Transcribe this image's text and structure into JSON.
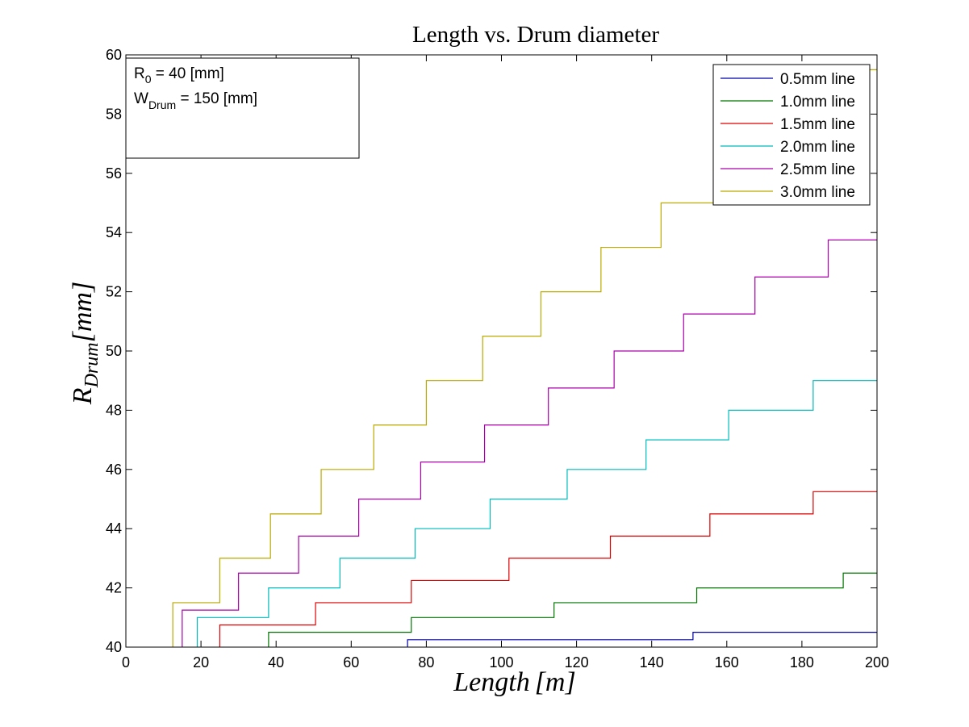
{
  "chart_data": {
    "type": "line",
    "title": "Length vs. Drum diameter",
    "xlabel": {
      "base": "Length",
      "unit": "[m]"
    },
    "ylabel": {
      "base": "R",
      "subscript": "Drum",
      "unit": "[mm]"
    },
    "xlim": [
      0,
      200
    ],
    "ylim": [
      40,
      60
    ],
    "xticks": [
      0,
      20,
      40,
      60,
      80,
      100,
      120,
      140,
      160,
      180,
      200
    ],
    "yticks": [
      40,
      42,
      44,
      46,
      48,
      50,
      52,
      54,
      56,
      58,
      60
    ],
    "grid": false,
    "legend_position": "top-right",
    "annotation": {
      "line1": {
        "base": "R",
        "subscript": "0",
        "rest": " = 40 [mm]"
      },
      "line2": {
        "base": "W",
        "subscript": "Drum",
        "rest": " = 150 [mm]"
      }
    },
    "series": [
      {
        "name": "0.5mm line",
        "color": "#0000aa",
        "steps_x": [
          75,
          151
        ],
        "steps_y": [
          40.25,
          40.5
        ]
      },
      {
        "name": "1.0mm line",
        "color": "#007700",
        "steps_x": [
          38,
          76,
          114,
          152,
          191
        ],
        "steps_y": [
          40.5,
          41.0,
          41.5,
          42.0,
          42.5
        ]
      },
      {
        "name": "1.5mm line",
        "color": "#dd0000",
        "steps_x": [
          25,
          50.5,
          76,
          102,
          129,
          155.5,
          183
        ],
        "steps_y": [
          40.75,
          41.5,
          42.25,
          43.0,
          43.75,
          44.5,
          45.25
        ]
      },
      {
        "name": "2.0mm line",
        "color": "#00bbbb",
        "steps_x": [
          19,
          38,
          57,
          77,
          97,
          117.5,
          138.5,
          160.5,
          183
        ],
        "steps_y": [
          41,
          42,
          43,
          44,
          45,
          46,
          47,
          48,
          49
        ]
      },
      {
        "name": "2.5mm line",
        "color": "#aa00aa",
        "steps_x": [
          15,
          30,
          46,
          62,
          78.5,
          95.5,
          112.5,
          130,
          148.5,
          167.5,
          187
        ],
        "steps_y": [
          41.25,
          42.5,
          43.75,
          45.0,
          46.25,
          47.5,
          48.75,
          50.0,
          51.25,
          52.5,
          53.75
        ]
      },
      {
        "name": "3.0mm line",
        "color": "#bbaa00",
        "steps_x": [
          12.5,
          25,
          38.5,
          52,
          66,
          80,
          95,
          110.5,
          126.5,
          142.5,
          159,
          177,
          195
        ],
        "steps_y": [
          41.5,
          43.0,
          44.5,
          46.0,
          47.5,
          49.0,
          50.5,
          52.0,
          53.5,
          55.0,
          56.5,
          58.0,
          59.5
        ]
      }
    ]
  }
}
